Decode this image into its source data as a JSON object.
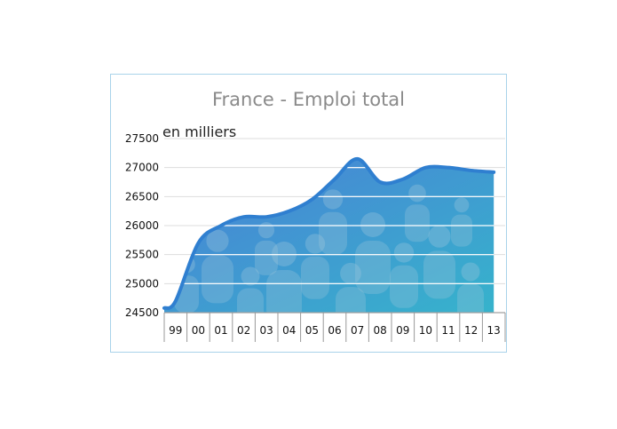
{
  "chart_data": {
    "type": "area",
    "title": "France - Emploi total",
    "ylabel": "en milliers",
    "xlabel": "",
    "categories": [
      "99",
      "00",
      "01",
      "02",
      "03",
      "04",
      "05",
      "06",
      "07",
      "08",
      "09",
      "10",
      "11",
      "12",
      "13"
    ],
    "ylim": [
      24500,
      27500
    ],
    "y_ticks": [
      24500,
      25000,
      25500,
      26000,
      26500,
      27000,
      27500
    ],
    "grid": true,
    "series": [
      {
        "values": [
          24700,
          25700,
          26000,
          26150,
          26150,
          26250,
          26450,
          26800,
          27150,
          26750,
          26800,
          27000,
          27000,
          26950,
          26920
        ]
      }
    ],
    "colors": {
      "line": "#2f7fd0",
      "fill_top": "#4a83d6",
      "fill_bottom": "#3fb2cf",
      "grid": "#ffffff",
      "frame": "#a9d3ea"
    }
  }
}
